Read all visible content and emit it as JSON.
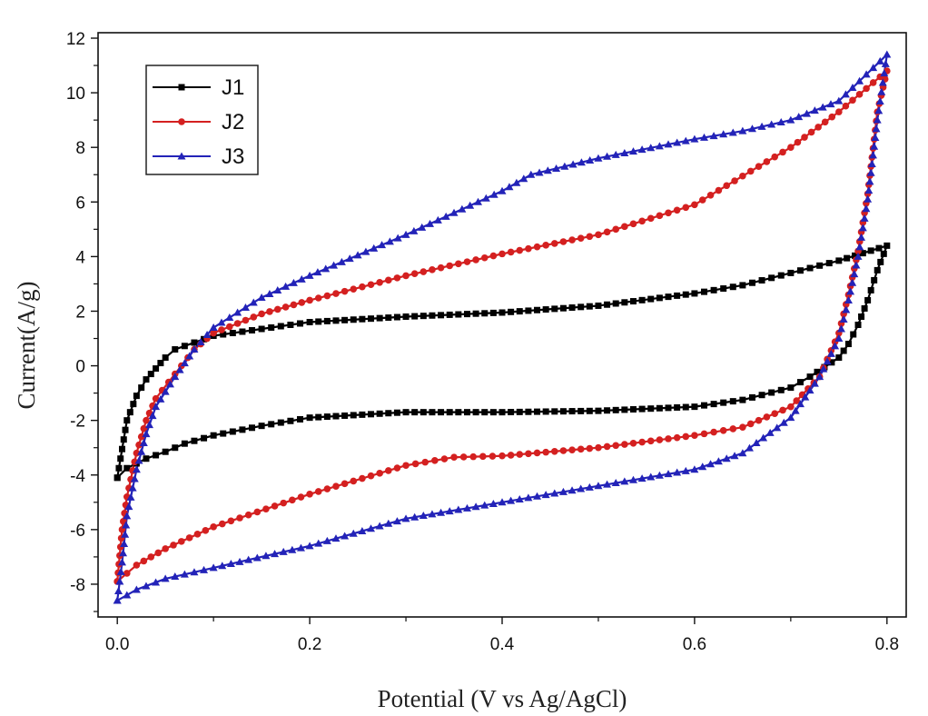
{
  "chart_data": {
    "type": "line",
    "title": "",
    "xlabel": "Potential (V vs Ag/AgCl)",
    "ylabel": "Current(A/g)",
    "xlim": [
      -0.02,
      0.82
    ],
    "ylim": [
      -9.2,
      12.2
    ],
    "x_ticks": [
      "0.0",
      "0.2",
      "0.4",
      "0.6",
      "0.8"
    ],
    "x_tick_values": [
      0,
      0.2,
      0.4,
      0.6,
      0.8
    ],
    "y_ticks": [
      "12",
      "10",
      "8",
      "6",
      "4",
      "2",
      "0",
      "-2",
      "-4",
      "-6",
      "-8"
    ],
    "y_tick_values": [
      12,
      10,
      8,
      6,
      4,
      2,
      0,
      -2,
      -4,
      -6,
      -8
    ],
    "grid": false,
    "legend_position": "top-left",
    "series": [
      {
        "name": "J1",
        "color": "#000000",
        "marker": "square",
        "x": [
          0,
          0.01,
          0.02,
          0.03,
          0.04,
          0.05,
          0.06,
          0.08,
          0.1,
          0.15,
          0.2,
          0.3,
          0.4,
          0.5,
          0.6,
          0.65,
          0.7,
          0.75,
          0.8,
          0.79,
          0.78,
          0.77,
          0.76,
          0.75,
          0.72,
          0.7,
          0.65,
          0.6,
          0.5,
          0.4,
          0.3,
          0.2,
          0.15,
          0.1,
          0.07,
          0.05,
          0.03,
          0.01,
          0
        ],
        "y": [
          -4.1,
          -2.0,
          -1.1,
          -0.5,
          -0.1,
          0.3,
          0.6,
          0.85,
          1.1,
          1.35,
          1.6,
          1.8,
          1.95,
          2.2,
          2.65,
          2.95,
          3.4,
          3.85,
          4.4,
          3.5,
          2.4,
          1.5,
          0.8,
          0.3,
          -0.4,
          -0.8,
          -1.25,
          -1.5,
          -1.65,
          -1.7,
          -1.7,
          -1.9,
          -2.2,
          -2.55,
          -2.85,
          -3.15,
          -3.4,
          -3.75,
          -4.1
        ]
      },
      {
        "name": "J2",
        "color": "#d42020",
        "marker": "circle",
        "x": [
          0,
          0.005,
          0.01,
          0.02,
          0.03,
          0.04,
          0.06,
          0.08,
          0.1,
          0.15,
          0.2,
          0.3,
          0.4,
          0.5,
          0.6,
          0.7,
          0.75,
          0.8,
          0.79,
          0.78,
          0.77,
          0.76,
          0.75,
          0.73,
          0.7,
          0.65,
          0.6,
          0.5,
          0.4,
          0.35,
          0.3,
          0.2,
          0.1,
          0.05,
          0.02,
          0.01,
          0
        ],
        "y": [
          -7.9,
          -6.0,
          -4.8,
          -3.2,
          -2.0,
          -1.2,
          -0.3,
          0.6,
          1.2,
          1.9,
          2.4,
          3.3,
          4.1,
          4.8,
          5.9,
          8.0,
          9.3,
          10.8,
          9.3,
          6.3,
          4.2,
          2.6,
          1.2,
          -0.4,
          -1.5,
          -2.25,
          -2.55,
          -3.0,
          -3.3,
          -3.35,
          -3.65,
          -4.7,
          -5.9,
          -6.7,
          -7.3,
          -7.6,
          -7.9
        ]
      },
      {
        "name": "J3",
        "color": "#2323b8",
        "marker": "triangle",
        "x": [
          0,
          0.005,
          0.01,
          0.02,
          0.03,
          0.04,
          0.06,
          0.08,
          0.1,
          0.15,
          0.2,
          0.3,
          0.4,
          0.43,
          0.5,
          0.6,
          0.65,
          0.7,
          0.75,
          0.8,
          0.79,
          0.78,
          0.77,
          0.76,
          0.75,
          0.73,
          0.7,
          0.65,
          0.6,
          0.5,
          0.4,
          0.3,
          0.2,
          0.1,
          0.05,
          0.02,
          0.01,
          0
        ],
        "y": [
          -8.6,
          -7.2,
          -5.5,
          -3.8,
          -2.5,
          -1.5,
          -0.4,
          0.6,
          1.4,
          2.5,
          3.3,
          4.8,
          6.4,
          7.0,
          7.6,
          8.3,
          8.6,
          9.0,
          9.7,
          11.4,
          9.0,
          6.1,
          4.0,
          2.4,
          1.0,
          -0.4,
          -1.9,
          -3.2,
          -3.8,
          -4.4,
          -5.0,
          -5.6,
          -6.6,
          -7.4,
          -7.8,
          -8.2,
          -8.4,
          -8.6
        ]
      }
    ]
  }
}
